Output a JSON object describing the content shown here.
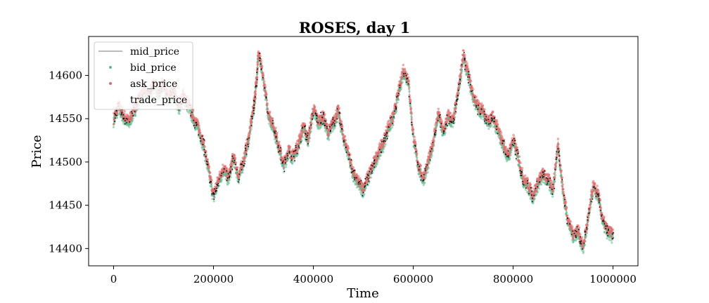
{
  "chart_data": {
    "type": "scatter",
    "title": "ROSES, day 1",
    "xlabel": "Time",
    "ylabel": "Price",
    "xlim": [
      -50000,
      1050000
    ],
    "ylim": [
      14380,
      14645
    ],
    "x_ticks": [
      0,
      200000,
      400000,
      600000,
      800000,
      1000000
    ],
    "x_tick_labels": [
      "0",
      "200000",
      "400000",
      "600000",
      "800000",
      "1000000"
    ],
    "y_ticks": [
      14400,
      14450,
      14500,
      14550,
      14600
    ],
    "y_tick_labels": [
      "14400",
      "14450",
      "14500",
      "14550",
      "14600"
    ],
    "grid": false,
    "legend_position": "upper-left",
    "series": [
      {
        "name": "mid_price",
        "style": "line",
        "color": "#bbbbbb"
      },
      {
        "name": "bid_price",
        "style": "points",
        "color": "#5cb88c"
      },
      {
        "name": "ask_price",
        "style": "points",
        "color": "#e06b6b"
      },
      {
        "name": "trade_price",
        "style": "points",
        "color": "#000000"
      }
    ],
    "path_x": [
      0,
      10000,
      20000,
      30000,
      40000,
      50000,
      60000,
      70000,
      80000,
      90000,
      100000,
      110000,
      120000,
      130000,
      140000,
      150000,
      160000,
      170000,
      180000,
      190000,
      200000,
      210000,
      220000,
      230000,
      240000,
      250000,
      260000,
      270000,
      280000,
      285000,
      290000,
      300000,
      310000,
      320000,
      330000,
      340000,
      350000,
      360000,
      370000,
      380000,
      390000,
      400000,
      410000,
      420000,
      430000,
      440000,
      450000,
      460000,
      470000,
      480000,
      490000,
      500000,
      510000,
      520000,
      530000,
      540000,
      550000,
      560000,
      570000,
      580000,
      590000,
      600000,
      610000,
      620000,
      630000,
      640000,
      650000,
      660000,
      670000,
      680000,
      690000,
      700000,
      710000,
      720000,
      730000,
      740000,
      750000,
      760000,
      770000,
      780000,
      790000,
      800000,
      810000,
      820000,
      830000,
      840000,
      850000,
      860000,
      870000,
      880000,
      890000,
      900000,
      910000,
      920000,
      930000,
      940000,
      950000,
      960000,
      970000,
      980000,
      990000,
      1000000
    ],
    "path_y": [
      14548,
      14563,
      14552,
      14545,
      14558,
      14570,
      14583,
      14575,
      14590,
      14580,
      14590,
      14572,
      14582,
      14563,
      14575,
      14565,
      14550,
      14538,
      14520,
      14490,
      14460,
      14478,
      14492,
      14480,
      14505,
      14482,
      14500,
      14525,
      14560,
      14585,
      14625,
      14595,
      14555,
      14540,
      14520,
      14495,
      14512,
      14505,
      14520,
      14540,
      14525,
      14560,
      14545,
      14552,
      14532,
      14545,
      14558,
      14528,
      14510,
      14485,
      14475,
      14468,
      14482,
      14495,
      14510,
      14520,
      14540,
      14550,
      14578,
      14605,
      14595,
      14530,
      14495,
      14480,
      14498,
      14522,
      14555,
      14533,
      14552,
      14545,
      14580,
      14622,
      14600,
      14575,
      14562,
      14558,
      14545,
      14550,
      14535,
      14520,
      14505,
      14525,
      14505,
      14480,
      14472,
      14460,
      14475,
      14485,
      14478,
      14468,
      14520,
      14465,
      14432,
      14415,
      14420,
      14400,
      14432,
      14470,
      14462,
      14430,
      14418,
      14415
    ]
  }
}
